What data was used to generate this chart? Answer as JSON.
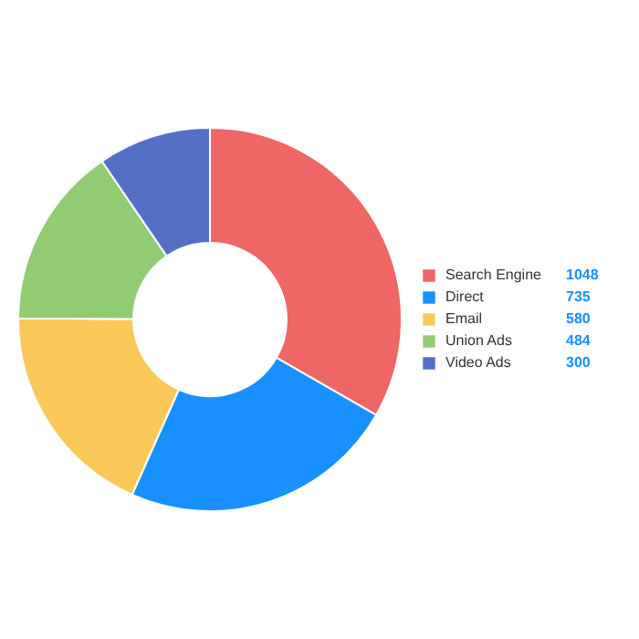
{
  "chart_data": {
    "type": "donut",
    "categories": [
      "Search Engine",
      "Direct",
      "Email",
      "Union Ads",
      "Video Ads"
    ],
    "values": [
      1048,
      735,
      580,
      484,
      300
    ],
    "colors": [
      "#ee6666",
      "#1890ff",
      "#fac858",
      "#91cc75",
      "#5470c6"
    ],
    "legend": "right",
    "data_labels": true
  }
}
